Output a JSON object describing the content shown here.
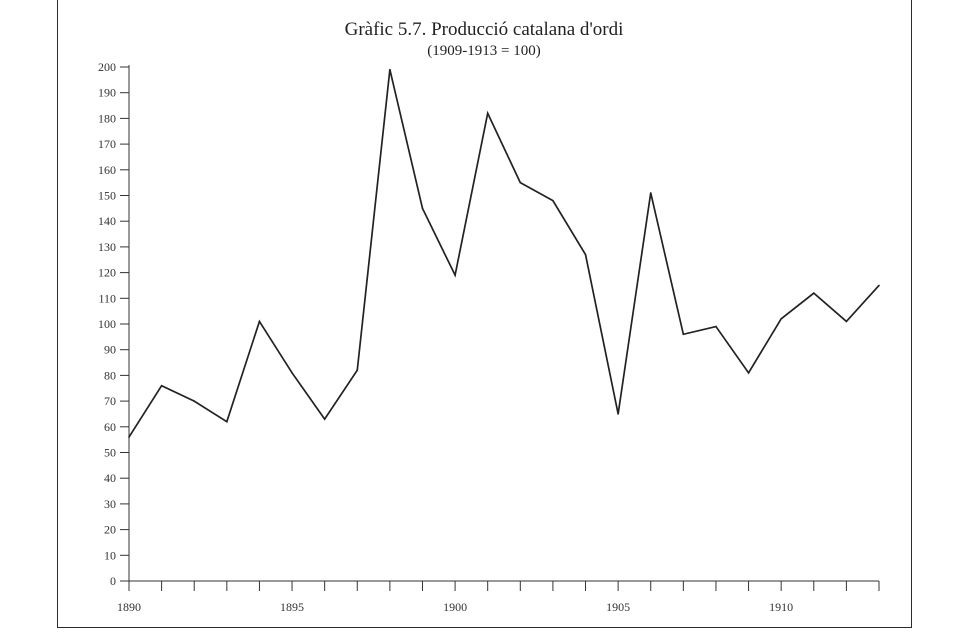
{
  "chart_data": {
    "type": "line",
    "title": "Gràfic 5.7. Producció catalana d'ordi",
    "subtitle": "(1909-1913 = 100)",
    "xlabel": "",
    "ylabel": "",
    "x": [
      1890,
      1891,
      1892,
      1893,
      1894,
      1895,
      1896,
      1897,
      1898,
      1899,
      1900,
      1901,
      1902,
      1903,
      1904,
      1905,
      1906,
      1907,
      1908,
      1909,
      1910,
      1911,
      1912,
      1913
    ],
    "series": [
      {
        "values": [
          56,
          76,
          70,
          62,
          101,
          81,
          63,
          82,
          199,
          145,
          119,
          182,
          155,
          148,
          127,
          65,
          151,
          96,
          99,
          81,
          102,
          112,
          101,
          115
        ]
      }
    ],
    "xlim": [
      1890,
      1913
    ],
    "ylim": [
      0,
      200
    ],
    "y_ticks": [
      0,
      10,
      20,
      30,
      40,
      50,
      60,
      70,
      80,
      90,
      100,
      110,
      120,
      130,
      140,
      150,
      160,
      170,
      180,
      190,
      200
    ],
    "x_tick_labels": [
      1890,
      1895,
      1900,
      1905,
      1910
    ],
    "grid": false,
    "line_color": "#222222"
  }
}
